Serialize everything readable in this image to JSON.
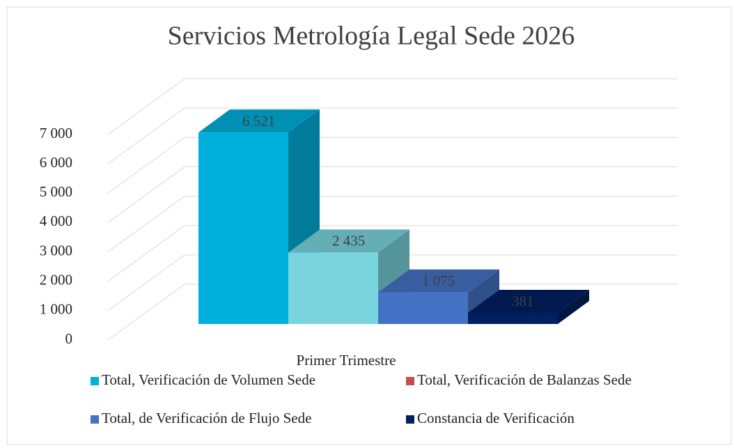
{
  "chart_data": {
    "type": "bar3d",
    "title": "Servicios Metrología Legal Sede 2026",
    "categories": [
      "Primer Trimestre"
    ],
    "series": [
      {
        "name": "Total, Verificación de Volumen Sede",
        "color": "#00b0dc",
        "legend_color": "#00b0dc",
        "values": [
          6521
        ],
        "value_labels": [
          "6 521"
        ]
      },
      {
        "name": "Total, Verificación de Balanzas Sede",
        "color": "#7ad4de",
        "legend_color": "#c0504d",
        "values": [
          2435
        ],
        "value_labels": [
          "2 435"
        ]
      },
      {
        "name": "Total, de Verificación de Flujo Sede",
        "color": "#4472c4",
        "legend_color": "#4472c4",
        "values": [
          1075
        ],
        "value_labels": [
          "1 075"
        ]
      },
      {
        "name": "Constancia de Verificación",
        "color": "#002060",
        "legend_color": "#002060",
        "values": [
          381
        ],
        "value_labels": [
          "381"
        ]
      }
    ],
    "ylim": [
      0,
      7000
    ],
    "yticks": [
      0,
      {
        "value": 1000,
        "label": "1 000"
      },
      {
        "value": 2000,
        "label": "2 000"
      },
      {
        "value": 3000,
        "label": "3 000"
      },
      {
        "value": 4000,
        "label": "4 000"
      },
      {
        "value": 5000,
        "label": "5 000"
      },
      {
        "value": 6000,
        "label": "6 000"
      },
      {
        "value": 7000,
        "label": "7 000"
      }
    ],
    "grid": true,
    "legend": "bottom"
  }
}
